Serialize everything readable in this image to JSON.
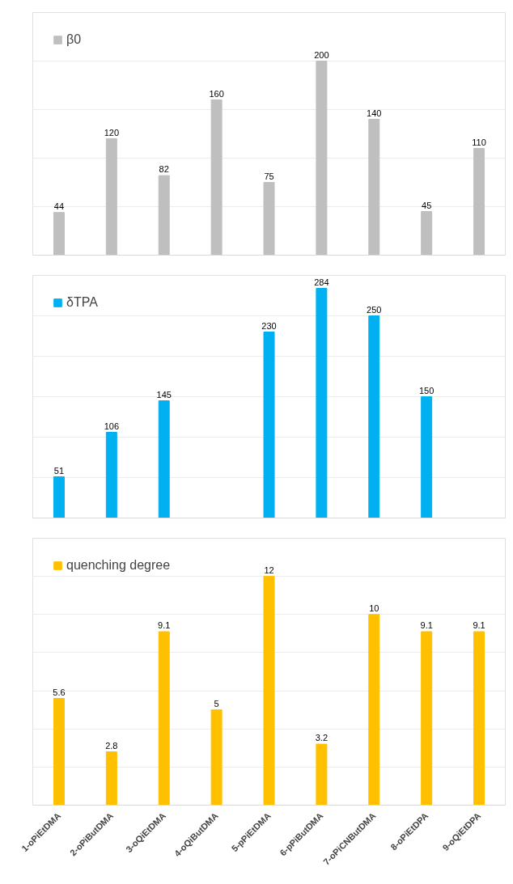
{
  "chart_data": [
    {
      "type": "bar",
      "categories": [
        null,
        null,
        null,
        null,
        null,
        null,
        null,
        null,
        null
      ],
      "series": [
        {
          "name": "β0",
          "color": "#bfbfbf",
          "values": [
            44,
            120,
            82,
            160,
            75,
            200,
            140,
            45,
            110
          ]
        }
      ],
      "ylim": [
        0,
        250
      ],
      "yticks": [
        {
          "value": 0,
          "label": null
        },
        {
          "value": 50,
          "label": null
        },
        {
          "value": 100,
          "label": null
        },
        {
          "value": 150,
          "label": null
        },
        {
          "value": 200,
          "label": null
        },
        {
          "value": 250,
          "label": null
        }
      ],
      "grid": "y",
      "legend": "top left",
      "data_labels": true,
      "tick_labels": false
    },
    {
      "type": "bar",
      "categories": [
        null,
        null,
        null,
        null,
        null,
        null,
        null,
        null,
        null
      ],
      "series": [
        {
          "name": "δTPA",
          "color": "#00b0f0",
          "values": [
            51,
            106,
            145,
            null,
            230,
            284,
            250,
            150,
            null
          ]
        }
      ],
      "ylim": [
        0,
        300
      ],
      "yticks": [
        {
          "value": 0,
          "label": null
        },
        {
          "value": 50,
          "label": null
        },
        {
          "value": 100,
          "label": null
        },
        {
          "value": 150,
          "label": null
        },
        {
          "value": 200,
          "label": null
        },
        {
          "value": 250,
          "label": null
        },
        {
          "value": 300,
          "label": null
        }
      ],
      "grid": "y",
      "legend": "top left",
      "data_labels": true,
      "tick_labels": false
    },
    {
      "type": "bar",
      "categories": [
        "1-oPiEtDMA",
        "2-oPiButDMA",
        "3-oQiEtDMA",
        "4-oQiButDMA",
        "5-pPiEtDMA",
        "6-pPiButDMA",
        "7-oPiCNButDMA",
        "8-oPiEtDPA",
        "9-oQiEtDPA"
      ],
      "series": [
        {
          "name": "quenching degree",
          "color": "#ffc000",
          "values": [
            5.6,
            2.8,
            9.1,
            5,
            12,
            3.2,
            10,
            9.1,
            9.1
          ]
        }
      ],
      "ylim": [
        0,
        14
      ],
      "yticks": [
        {
          "value": 0,
          "label": null
        },
        {
          "value": 2,
          "label": null
        },
        {
          "value": 4,
          "label": null
        },
        {
          "value": 6,
          "label": null
        },
        {
          "value": 8,
          "label": null
        },
        {
          "value": 10,
          "label": null
        },
        {
          "value": 12,
          "label": null
        },
        {
          "value": 14,
          "label": null
        }
      ],
      "grid": "y",
      "legend": "top left",
      "data_labels": true,
      "tick_labels": "x"
    }
  ]
}
